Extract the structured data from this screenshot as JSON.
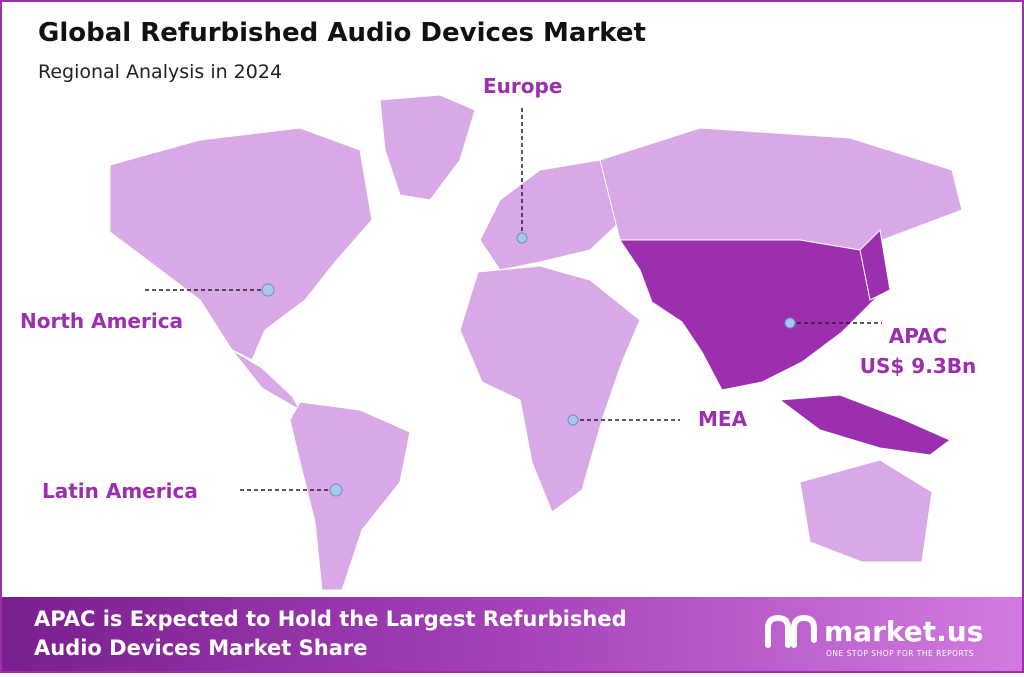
{
  "header": {
    "title": "Global Refurbished Audio Devices Market",
    "subtitle": "Regional Analysis in 2024"
  },
  "regions": [
    {
      "label": "Europe"
    },
    {
      "label": "North America"
    },
    {
      "label": "APAC",
      "value": "US$ 9.3Bn"
    },
    {
      "label": "MEA"
    },
    {
      "label": "Latin America"
    }
  ],
  "footer": {
    "lines": [
      "APAC is Expected to Hold the Largest Refurbished",
      "Audio Devices Market Share"
    ]
  },
  "brand": {
    "name": "market.us",
    "tagline": "ONE STOP SHOP FOR THE REPORTS"
  }
}
